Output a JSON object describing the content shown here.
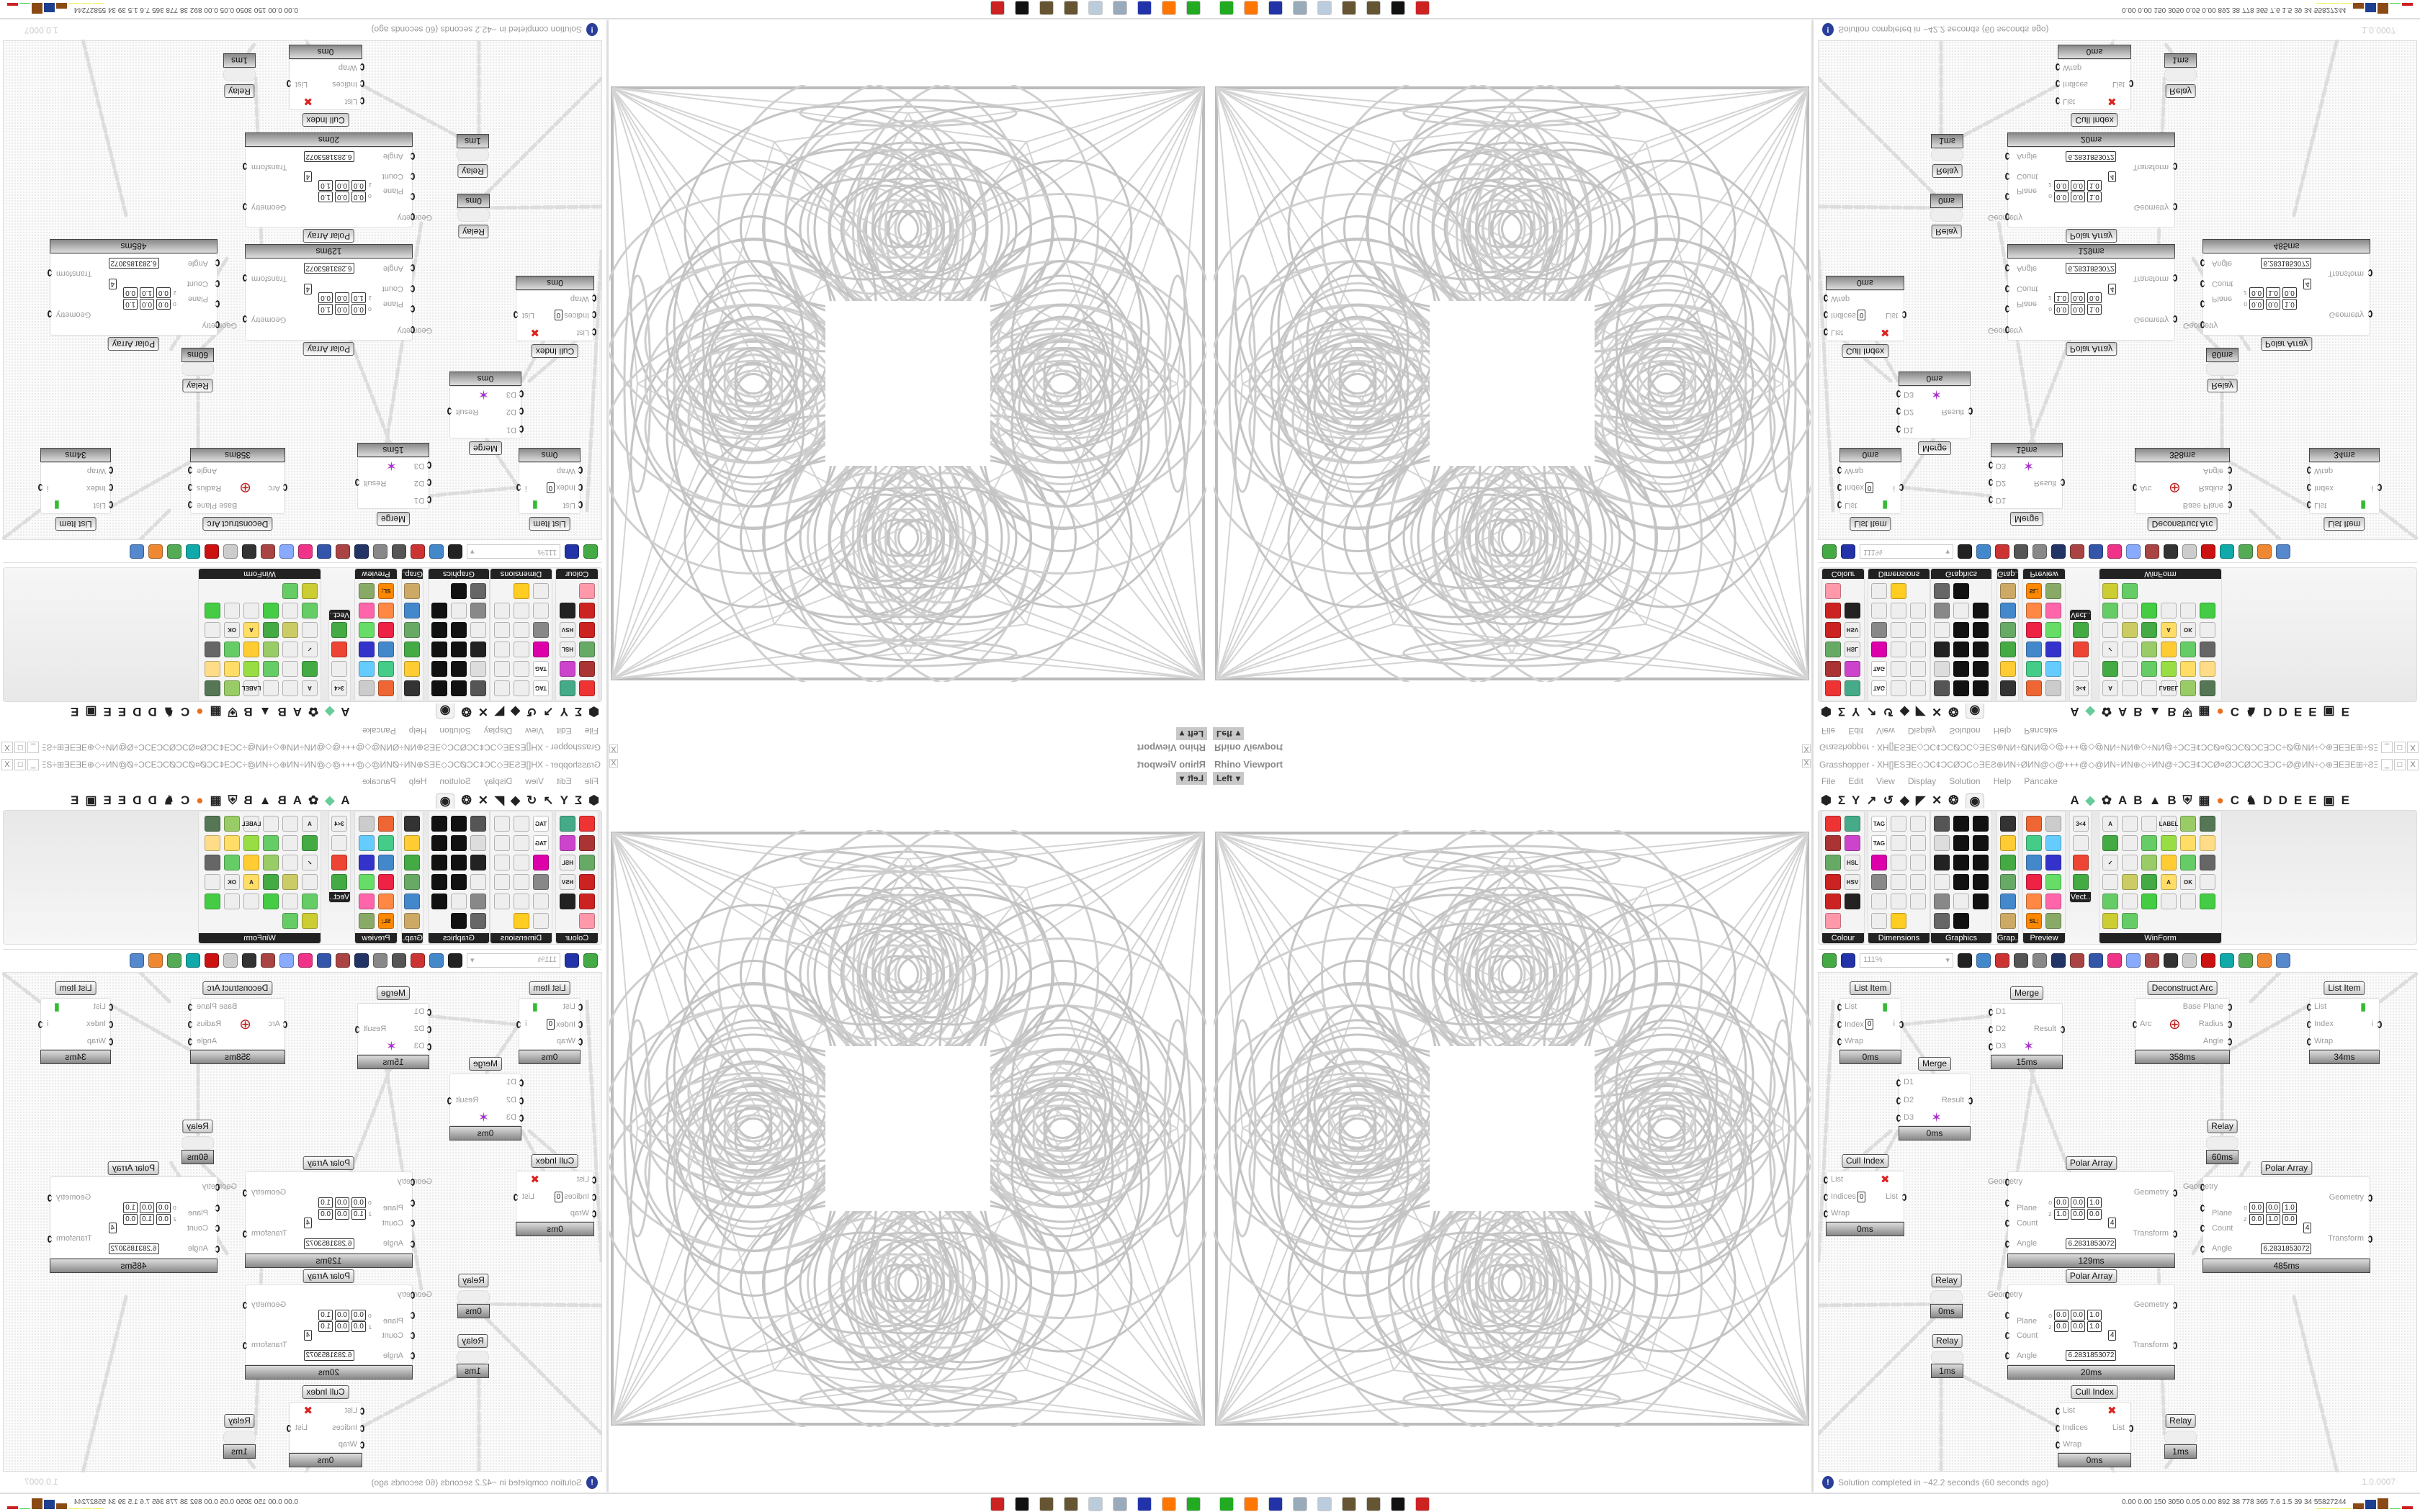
{
  "viewport": {
    "title": "Rhino Viewport",
    "view": "Left",
    "close_label": "X"
  },
  "grasshopper": {
    "title": "Grasshopper - XH[]ESƎE◇ƆC¢ƆCØƆC◇ƎEƧ⊕ИN÷ØИN@◇@+++@◇@ИN÷ИN⊕◇÷ИN@÷ƆCƎ¢ƆCØ¤ØƆCØƆCƎƆC÷Ø@ИN÷◇⊕ƎEƎE⊞÷ƧƎ÷⊞ƎEƎE⊕◇÷¢ƆCƎE⊞÷÷ƆC",
    "window_buttons": [
      "_",
      "□",
      "X"
    ],
    "menu": [
      "File",
      "Edit",
      "View",
      "Display",
      "Solution",
      "Help",
      "Pancake"
    ],
    "tab_icons": [
      "hexagon",
      "sigma",
      "y-fork",
      "arrow",
      "curve",
      "surface",
      "mesh",
      "intersect",
      "transform",
      "display-eye",
      "A",
      "leaf",
      "gear-flower",
      "A",
      "B",
      "mountain",
      "B",
      "shield",
      "grid",
      "orange-circle",
      "C",
      "rooster",
      "D",
      "D",
      "E",
      "E",
      "square-dots",
      "E"
    ],
    "active_tab": "display-eye",
    "panels": [
      {
        "label": "Colour",
        "cols": 2,
        "icons": [
          [
            "#e33",
            ""
          ],
          [
            "#4a8",
            ""
          ],
          [
            "#a33",
            ""
          ],
          [
            "#c4c",
            ""
          ],
          [
            "#6a6",
            ""
          ],
          [
            "#eee",
            "HSL"
          ],
          [
            "#c22",
            ""
          ],
          [
            "#eee",
            "HSV"
          ],
          [
            "#c22",
            ""
          ],
          [
            "#222",
            ""
          ],
          [
            "#f9a",
            ""
          ]
        ]
      },
      {
        "label": "Dimensions",
        "cols": 3,
        "icons": [
          [
            "#fff",
            "TAG"
          ],
          [
            "#eee",
            ""
          ],
          [
            "#eee",
            ""
          ],
          [
            "#fff",
            "TAG"
          ],
          [
            "#eee",
            ""
          ],
          [
            "#eee",
            ""
          ],
          [
            "#d0a",
            ""
          ],
          [
            "#eee",
            ""
          ],
          [
            "#eee",
            ""
          ],
          [
            "#888",
            ""
          ],
          [
            "#eee",
            ""
          ],
          [
            "#eee",
            ""
          ],
          [
            "#eee",
            ""
          ],
          [
            "#eee",
            ""
          ],
          [
            "#eee",
            ""
          ],
          [
            "#eee",
            ""
          ],
          [
            "#fc2",
            ""
          ]
        ]
      },
      {
        "label": "Graphics",
        "cols": 3,
        "icons": [
          [
            "#555",
            ""
          ],
          [
            "#111",
            ""
          ],
          [
            "#111",
            ""
          ],
          [
            "#ddd",
            ""
          ],
          [
            "#111",
            ""
          ],
          [
            "#111",
            ""
          ],
          [
            "#222",
            ""
          ],
          [
            "#111",
            ""
          ],
          [
            "#111",
            ""
          ],
          [
            "#eee",
            ""
          ],
          [
            "#111",
            ""
          ],
          [
            "#111",
            ""
          ],
          [
            "#888",
            ""
          ],
          [
            "#eee",
            ""
          ],
          [
            "#111",
            ""
          ],
          [
            "#666",
            ""
          ],
          [
            "#111",
            ""
          ]
        ]
      },
      {
        "label": "Grap..",
        "cols": 1,
        "icons": [
          [
            "#333",
            ""
          ],
          [
            "#fc3",
            ""
          ],
          [
            "#4a4",
            ""
          ],
          [
            "#6a6",
            ""
          ],
          [
            "#48c",
            ""
          ],
          [
            "#ca6",
            ""
          ]
        ]
      },
      {
        "label": "Preview",
        "cols": 2,
        "icons": [
          [
            "#e63",
            ""
          ],
          [
            "#ccc",
            ""
          ],
          [
            "#4c8",
            ""
          ],
          [
            "#6cf",
            ""
          ],
          [
            "#48c",
            ""
          ],
          [
            "#33c",
            ""
          ],
          [
            "#e24",
            ""
          ],
          [
            "#6d6",
            ""
          ],
          [
            "#f84",
            ""
          ],
          [
            "#f6a",
            ""
          ],
          [
            "#f80",
            "SL;"
          ],
          [
            "#8a6",
            ""
          ]
        ]
      },
      {
        "label": "Vect..",
        "cols": 1,
        "icons": [
          [
            "#eee",
            "3<4"
          ],
          [
            "#eee",
            ""
          ],
          [
            "#e43",
            ""
          ],
          [
            "#4a4",
            ""
          ]
        ]
      },
      {
        "label": "WinForm",
        "cols": 6,
        "icons": [
          [
            "#eee",
            "A"
          ],
          [
            "#eee",
            ""
          ],
          [
            "#eee",
            ""
          ],
          [
            "#eee",
            "LABEL"
          ],
          [
            "#9c6",
            ""
          ],
          [
            "#575",
            ""
          ],
          [
            "#4a4",
            ""
          ],
          [
            "#eee",
            ""
          ],
          [
            "#6c6",
            ""
          ],
          [
            "#9d4",
            ""
          ],
          [
            "#fd6",
            ""
          ],
          [
            "#fd8",
            ""
          ],
          [
            "#eee",
            "✓"
          ],
          [
            "#eee",
            ""
          ],
          [
            "#9c6",
            ""
          ],
          [
            "#fc3",
            ""
          ],
          [
            "#6c6",
            ""
          ],
          [
            "#666",
            ""
          ],
          [
            "#eee",
            ""
          ],
          [
            "#cc6",
            ""
          ],
          [
            "#4a4",
            ""
          ],
          [
            "#fd6",
            "A"
          ],
          [
            "#eee",
            "OK"
          ],
          [
            "#eee",
            ""
          ],
          [
            "#6c6",
            ""
          ],
          [
            "#eee",
            ""
          ],
          [
            "#4c4",
            ""
          ],
          [
            "#eee",
            ""
          ],
          [
            "#eee",
            ""
          ],
          [
            "#4c4",
            ""
          ],
          [
            "#cc3",
            ""
          ],
          [
            "#6c6",
            ""
          ]
        ]
      }
    ],
    "toolbar": {
      "zoom": "111%",
      "icons": [
        [
          "new-document",
          "#4a4"
        ],
        [
          "save",
          "#23a"
        ],
        [
          "zoom-extents",
          "#222"
        ],
        [
          "preview-eye",
          "#48c"
        ],
        [
          "sketch-pen",
          "#c33"
        ],
        [
          "cluster",
          "#555"
        ],
        [
          "at-sign",
          "#888"
        ],
        [
          "gha",
          "#236"
        ],
        [
          "image",
          "#a44"
        ],
        [
          "search",
          "#35a"
        ],
        [
          "box",
          "#e38"
        ],
        [
          "bulb",
          "#8af"
        ],
        [
          "wires",
          "#a44"
        ],
        [
          "bottle",
          "#333"
        ],
        [
          "ring",
          "#ccc"
        ],
        [
          "ruby",
          "#c11"
        ],
        [
          "teal-shape",
          "#1aa"
        ],
        [
          "green-ball",
          "#5a5"
        ],
        [
          "orange-ball",
          "#e83"
        ],
        [
          "blue-ball",
          "#58c"
        ]
      ]
    },
    "components": [
      {
        "title": "List Item",
        "inputs": [
          {
            "label": "List"
          },
          {
            "label": "Index",
            "value": "0"
          },
          {
            "label": "Wrap"
          }
        ],
        "outputs": [
          "i"
        ],
        "footer": "0ms"
      },
      {
        "title": "Merge",
        "inputs": [
          {
            "label": "D1"
          },
          {
            "label": "D2"
          },
          {
            "label": "D3"
          }
        ],
        "outputs": [
          "Result"
        ],
        "footer": "15ms"
      },
      {
        "title": "Merge",
        "inputs": [
          {
            "label": "D1"
          },
          {
            "label": "D2"
          },
          {
            "label": "D3"
          }
        ],
        "outputs": [
          "Result"
        ],
        "footer": "0ms"
      },
      {
        "title": "Deconstruct Arc",
        "inputs": [
          {
            "label": "Arc"
          }
        ],
        "outputs": [
          "Base Plane",
          "Radius",
          "Angle"
        ],
        "footer": "358ms"
      },
      {
        "title": "List Item",
        "inputs": [
          {
            "label": "List"
          },
          {
            "label": "Index"
          },
          {
            "label": "Wrap"
          }
        ],
        "outputs": [
          "i"
        ],
        "footer": "34ms"
      },
      {
        "title": "Relay",
        "inputs": [],
        "outputs": [],
        "footer": "60ms"
      },
      {
        "title": "Cull Index",
        "inputs": [
          {
            "label": "List"
          },
          {
            "label": "Indices",
            "value": "0"
          },
          {
            "label": "Wrap"
          }
        ],
        "outputs": [
          "List"
        ],
        "footer": "0ms"
      },
      {
        "title": "Polar Array",
        "inputs": [
          {
            "label": "Geometry"
          },
          {
            "label": "Plane",
            "plane": [
              [
                "o",
                "0.0",
                "0.0",
                "1.0"
              ],
              [
                "z",
                "1.0",
                "0.0",
                "0.0"
              ]
            ]
          },
          {
            "label": "Count",
            "value": "4"
          },
          {
            "label": "Angle",
            "value": "6.2831853072"
          }
        ],
        "outputs": [
          "Geometry",
          "Transform"
        ],
        "footer": "129ms"
      },
      {
        "title": "Polar Array",
        "inputs": [
          {
            "label": "Geometry"
          },
          {
            "label": "Plane",
            "plane": [
              [
                "o",
                "0.0",
                "0.0",
                "1.0"
              ],
              [
                "z",
                "0.0",
                "1.0",
                "0.0"
              ]
            ]
          },
          {
            "label": "Count",
            "value": "4"
          },
          {
            "label": "Angle",
            "value": "6.2831853072"
          }
        ],
        "outputs": [
          "Geometry",
          "Transform"
        ],
        "footer": "485ms"
      },
      {
        "title": "Relay",
        "inputs": [],
        "outputs": [],
        "footer": "0ms"
      },
      {
        "title": "Relay",
        "inputs": [],
        "outputs": [],
        "footer": "1ms"
      },
      {
        "title": "Polar Array",
        "inputs": [
          {
            "label": "Geometry"
          },
          {
            "label": "Plane",
            "plane": [
              [
                "o",
                "0.0",
                "0.0",
                "1.0"
              ],
              [
                "z",
                "0.0",
                "0.0",
                "1.0"
              ]
            ]
          },
          {
            "label": "Count",
            "value": "4"
          },
          {
            "label": "Angle",
            "value": "6.2831853072"
          }
        ],
        "outputs": [
          "Geometry",
          "Transform"
        ],
        "footer": "20ms"
      },
      {
        "title": "Cull Index",
        "inputs": [
          {
            "label": "List"
          },
          {
            "label": "Indices"
          },
          {
            "label": "Wrap"
          }
        ],
        "outputs": [
          "List"
        ],
        "footer": "0ms"
      },
      {
        "title": "Relay",
        "inputs": [],
        "outputs": [],
        "footer": "1ms"
      }
    ],
    "status": "Solution completed in ~42.2 seconds (60 seconds ago)",
    "version": "1.0.0007"
  },
  "taskbar": {
    "icons": [
      [
        "terminal",
        "#2a2"
      ],
      [
        "firefox",
        "#f70"
      ],
      [
        "floppy-64",
        "#23a"
      ],
      [
        "scroll",
        "#9ab"
      ],
      [
        "notepad",
        "#bcd"
      ],
      [
        "walnut",
        "#653"
      ],
      [
        "walnut",
        "#653"
      ],
      [
        "badger",
        "#111"
      ],
      [
        "red-app",
        "#c22"
      ]
    ],
    "stats": "0.00 0.00 150 3050 0.05 0.00 892  38  778  365  7.6  1.5  39  34  55827244",
    "meter_bars": [
      {
        "color": "#ee4",
        "level": 0.05
      },
      {
        "color": "#ee4",
        "level": 0.05
      },
      {
        "color": "#ee4",
        "level": 0.05
      },
      {
        "color": "#8b4a13",
        "level": 0.55
      },
      {
        "color": "#1d3f8f",
        "level": 0.85
      },
      {
        "color": "#8b4a13",
        "level": 1.0
      },
      {
        "color": "#4c4",
        "level": 0.1
      },
      {
        "color": "#c22",
        "level": 0.25
      }
    ]
  }
}
